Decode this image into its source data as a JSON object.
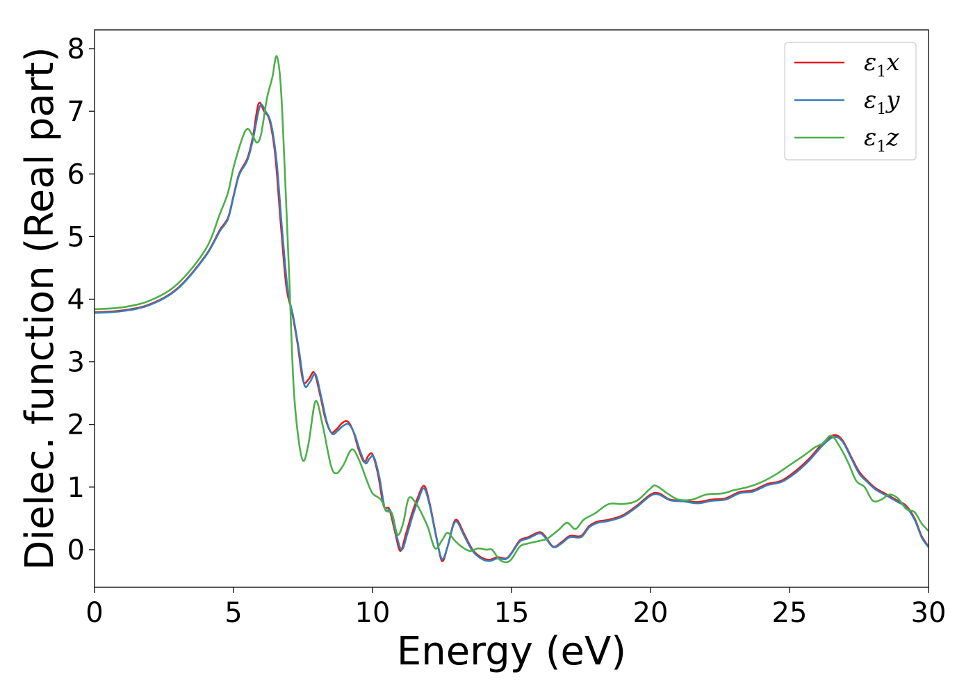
{
  "chart_data": {
    "type": "line",
    "title": "",
    "xlabel": "Energy (eV)",
    "ylabel": "Dielec. function (Real part)",
    "xlim": [
      0,
      30
    ],
    "ylim": [
      -0.6,
      8.3
    ],
    "xticks": [
      0,
      5,
      10,
      15,
      20,
      25,
      30
    ],
    "yticks": [
      0,
      1,
      2,
      3,
      4,
      5,
      6,
      7,
      8
    ],
    "grid": false,
    "legend_position": "top-right",
    "series": [
      {
        "name": "ε1x",
        "legend": {
          "main": "ε",
          "sub": "1",
          "tail": "x"
        },
        "color": "#e41a1c",
        "points": [
          [
            0,
            3.79
          ],
          [
            1,
            3.82
          ],
          [
            2,
            3.92
          ],
          [
            3,
            4.18
          ],
          [
            4,
            4.7
          ],
          [
            4.5,
            5.1
          ],
          [
            4.8,
            5.3
          ],
          [
            5,
            5.65
          ],
          [
            5.2,
            6.0
          ],
          [
            5.5,
            6.25
          ],
          [
            5.7,
            6.6
          ],
          [
            5.9,
            7.12
          ],
          [
            6.1,
            7.0
          ],
          [
            6.3,
            6.85
          ],
          [
            6.5,
            6.3
          ],
          [
            6.7,
            5.2
          ],
          [
            6.9,
            4.2
          ],
          [
            7.1,
            3.8
          ],
          [
            7.3,
            3.3
          ],
          [
            7.5,
            2.7
          ],
          [
            7.7,
            2.72
          ],
          [
            7.9,
            2.83
          ],
          [
            8.1,
            2.5
          ],
          [
            8.3,
            2.1
          ],
          [
            8.5,
            1.88
          ],
          [
            8.7,
            1.92
          ],
          [
            8.9,
            2.02
          ],
          [
            9.1,
            2.05
          ],
          [
            9.3,
            1.9
          ],
          [
            9.5,
            1.6
          ],
          [
            9.7,
            1.4
          ],
          [
            9.85,
            1.5
          ],
          [
            10,
            1.52
          ],
          [
            10.2,
            1.2
          ],
          [
            10.4,
            0.7
          ],
          [
            10.6,
            0.65
          ],
          [
            10.8,
            0.3
          ],
          [
            11.0,
            -0.02
          ],
          [
            11.2,
            0.25
          ],
          [
            11.4,
            0.55
          ],
          [
            11.6,
            0.8
          ],
          [
            11.85,
            1.02
          ],
          [
            12.05,
            0.75
          ],
          [
            12.3,
            0.2
          ],
          [
            12.5,
            -0.18
          ],
          [
            12.7,
            0.05
          ],
          [
            12.9,
            0.4
          ],
          [
            13.05,
            0.47
          ],
          [
            13.3,
            0.25
          ],
          [
            13.6,
            0.0
          ],
          [
            13.9,
            -0.12
          ],
          [
            14.2,
            -0.16
          ],
          [
            14.5,
            -0.12
          ],
          [
            14.8,
            -0.14
          ],
          [
            15.0,
            -0.05
          ],
          [
            15.3,
            0.15
          ],
          [
            15.6,
            0.2
          ],
          [
            16.0,
            0.28
          ],
          [
            16.2,
            0.22
          ],
          [
            16.5,
            0.05
          ],
          [
            16.8,
            0.12
          ],
          [
            17.1,
            0.22
          ],
          [
            17.5,
            0.22
          ],
          [
            17.8,
            0.38
          ],
          [
            18.1,
            0.45
          ],
          [
            18.5,
            0.48
          ],
          [
            19.0,
            0.55
          ],
          [
            19.5,
            0.7
          ],
          [
            20.0,
            0.88
          ],
          [
            20.3,
            0.9
          ],
          [
            20.7,
            0.8
          ],
          [
            21.2,
            0.78
          ],
          [
            21.7,
            0.76
          ],
          [
            22.2,
            0.8
          ],
          [
            22.7,
            0.82
          ],
          [
            23.2,
            0.92
          ],
          [
            23.7,
            0.95
          ],
          [
            24.2,
            1.05
          ],
          [
            24.7,
            1.1
          ],
          [
            25.2,
            1.25
          ],
          [
            25.7,
            1.45
          ],
          [
            26.2,
            1.7
          ],
          [
            26.6,
            1.83
          ],
          [
            26.9,
            1.75
          ],
          [
            27.2,
            1.5
          ],
          [
            27.5,
            1.25
          ],
          [
            27.8,
            1.1
          ],
          [
            28.1,
            0.98
          ],
          [
            28.5,
            0.88
          ],
          [
            28.9,
            0.78
          ],
          [
            29.2,
            0.7
          ],
          [
            29.5,
            0.5
          ],
          [
            29.75,
            0.22
          ],
          [
            30,
            0.05
          ]
        ]
      },
      {
        "name": "ε1y",
        "legend": {
          "main": "ε",
          "sub": "1",
          "tail": "y"
        },
        "color": "#377eb8",
        "points": [
          [
            0,
            3.78
          ],
          [
            1,
            3.81
          ],
          [
            2,
            3.91
          ],
          [
            3,
            4.17
          ],
          [
            4,
            4.69
          ],
          [
            4.5,
            5.08
          ],
          [
            4.8,
            5.28
          ],
          [
            5,
            5.63
          ],
          [
            5.2,
            5.98
          ],
          [
            5.5,
            6.22
          ],
          [
            5.7,
            6.55
          ],
          [
            5.95,
            7.08
          ],
          [
            6.15,
            7.0
          ],
          [
            6.35,
            6.8
          ],
          [
            6.55,
            6.2
          ],
          [
            6.75,
            5.1
          ],
          [
            6.95,
            4.15
          ],
          [
            7.15,
            3.72
          ],
          [
            7.35,
            3.2
          ],
          [
            7.55,
            2.63
          ],
          [
            7.75,
            2.68
          ],
          [
            7.95,
            2.8
          ],
          [
            8.15,
            2.45
          ],
          [
            8.35,
            2.05
          ],
          [
            8.55,
            1.85
          ],
          [
            8.75,
            1.9
          ],
          [
            8.95,
            1.98
          ],
          [
            9.15,
            2.0
          ],
          [
            9.35,
            1.85
          ],
          [
            9.55,
            1.58
          ],
          [
            9.75,
            1.38
          ],
          [
            9.9,
            1.46
          ],
          [
            10.05,
            1.48
          ],
          [
            10.25,
            1.15
          ],
          [
            10.45,
            0.65
          ],
          [
            10.65,
            0.62
          ],
          [
            10.85,
            0.25
          ],
          [
            11.05,
            0.0
          ],
          [
            11.25,
            0.25
          ],
          [
            11.45,
            0.55
          ],
          [
            11.65,
            0.8
          ],
          [
            11.85,
            0.98
          ],
          [
            12.05,
            0.72
          ],
          [
            12.3,
            0.18
          ],
          [
            12.5,
            -0.15
          ],
          [
            12.7,
            0.05
          ],
          [
            12.9,
            0.38
          ],
          [
            13.05,
            0.44
          ],
          [
            13.3,
            0.22
          ],
          [
            13.6,
            -0.02
          ],
          [
            13.9,
            -0.14
          ],
          [
            14.2,
            -0.18
          ],
          [
            14.5,
            -0.14
          ],
          [
            14.8,
            -0.15
          ],
          [
            15.0,
            -0.06
          ],
          [
            15.3,
            0.13
          ],
          [
            15.6,
            0.18
          ],
          [
            16.0,
            0.26
          ],
          [
            16.2,
            0.2
          ],
          [
            16.5,
            0.04
          ],
          [
            16.8,
            0.1
          ],
          [
            17.1,
            0.2
          ],
          [
            17.5,
            0.2
          ],
          [
            17.8,
            0.36
          ],
          [
            18.1,
            0.43
          ],
          [
            18.5,
            0.46
          ],
          [
            19.0,
            0.53
          ],
          [
            19.5,
            0.68
          ],
          [
            20.0,
            0.86
          ],
          [
            20.3,
            0.88
          ],
          [
            20.7,
            0.79
          ],
          [
            21.2,
            0.77
          ],
          [
            21.7,
            0.74
          ],
          [
            22.2,
            0.78
          ],
          [
            22.7,
            0.8
          ],
          [
            23.2,
            0.9
          ],
          [
            23.7,
            0.93
          ],
          [
            24.2,
            1.03
          ],
          [
            24.7,
            1.08
          ],
          [
            25.2,
            1.22
          ],
          [
            25.7,
            1.42
          ],
          [
            26.2,
            1.67
          ],
          [
            26.6,
            1.8
          ],
          [
            26.9,
            1.73
          ],
          [
            27.2,
            1.48
          ],
          [
            27.5,
            1.22
          ],
          [
            27.8,
            1.08
          ],
          [
            28.1,
            0.96
          ],
          [
            28.5,
            0.86
          ],
          [
            28.9,
            0.76
          ],
          [
            29.2,
            0.68
          ],
          [
            29.5,
            0.48
          ],
          [
            29.75,
            0.2
          ],
          [
            30,
            0.04
          ]
        ]
      },
      {
        "name": "ε1z",
        "legend": {
          "main": "ε",
          "sub": "1",
          "tail": "z"
        },
        "color": "#4daf4a",
        "points": [
          [
            0,
            3.84
          ],
          [
            1,
            3.87
          ],
          [
            2,
            3.98
          ],
          [
            3,
            4.25
          ],
          [
            4,
            4.8
          ],
          [
            4.5,
            5.35
          ],
          [
            4.8,
            5.7
          ],
          [
            5.0,
            6.1
          ],
          [
            5.3,
            6.55
          ],
          [
            5.5,
            6.72
          ],
          [
            5.7,
            6.6
          ],
          [
            5.85,
            6.5
          ],
          [
            6.0,
            6.65
          ],
          [
            6.2,
            7.2
          ],
          [
            6.4,
            7.55
          ],
          [
            6.55,
            7.88
          ],
          [
            6.7,
            7.4
          ],
          [
            6.85,
            6.0
          ],
          [
            7.0,
            4.4
          ],
          [
            7.15,
            2.7
          ],
          [
            7.3,
            1.9
          ],
          [
            7.5,
            1.42
          ],
          [
            7.7,
            1.7
          ],
          [
            7.95,
            2.37
          ],
          [
            8.2,
            2.0
          ],
          [
            8.5,
            1.35
          ],
          [
            8.7,
            1.22
          ],
          [
            8.95,
            1.35
          ],
          [
            9.25,
            1.6
          ],
          [
            9.5,
            1.45
          ],
          [
            9.8,
            1.1
          ],
          [
            10.0,
            0.9
          ],
          [
            10.3,
            0.8
          ],
          [
            10.5,
            0.62
          ],
          [
            10.7,
            0.58
          ],
          [
            10.9,
            0.24
          ],
          [
            11.1,
            0.42
          ],
          [
            11.3,
            0.82
          ],
          [
            11.55,
            0.75
          ],
          [
            11.8,
            0.55
          ],
          [
            12.0,
            0.35
          ],
          [
            12.25,
            0.02
          ],
          [
            12.5,
            0.15
          ],
          [
            12.7,
            0.27
          ],
          [
            12.95,
            0.15
          ],
          [
            13.2,
            0.05
          ],
          [
            13.5,
            -0.02
          ],
          [
            13.8,
            0.02
          ],
          [
            14.1,
            0.0
          ],
          [
            14.3,
            0.0
          ],
          [
            14.55,
            -0.15
          ],
          [
            14.8,
            -0.2
          ],
          [
            15.0,
            -0.15
          ],
          [
            15.3,
            0.05
          ],
          [
            15.6,
            0.1
          ],
          [
            16.0,
            0.14
          ],
          [
            16.3,
            0.18
          ],
          [
            16.7,
            0.32
          ],
          [
            17.0,
            0.43
          ],
          [
            17.3,
            0.33
          ],
          [
            17.6,
            0.48
          ],
          [
            18.0,
            0.58
          ],
          [
            18.5,
            0.73
          ],
          [
            19.0,
            0.73
          ],
          [
            19.5,
            0.78
          ],
          [
            20.0,
            0.98
          ],
          [
            20.2,
            1.02
          ],
          [
            20.6,
            0.9
          ],
          [
            21.0,
            0.8
          ],
          [
            21.5,
            0.8
          ],
          [
            22.0,
            0.88
          ],
          [
            22.6,
            0.9
          ],
          [
            23.0,
            0.95
          ],
          [
            23.5,
            1.0
          ],
          [
            24.0,
            1.08
          ],
          [
            24.5,
            1.2
          ],
          [
            25.0,
            1.35
          ],
          [
            25.5,
            1.5
          ],
          [
            25.9,
            1.63
          ],
          [
            26.2,
            1.7
          ],
          [
            26.5,
            1.82
          ],
          [
            26.8,
            1.65
          ],
          [
            27.1,
            1.4
          ],
          [
            27.4,
            1.1
          ],
          [
            27.7,
            1.0
          ],
          [
            28.0,
            0.78
          ],
          [
            28.3,
            0.8
          ],
          [
            28.6,
            0.88
          ],
          [
            28.9,
            0.82
          ],
          [
            29.2,
            0.65
          ],
          [
            29.5,
            0.6
          ],
          [
            29.75,
            0.42
          ],
          [
            30,
            0.3
          ]
        ]
      }
    ]
  }
}
